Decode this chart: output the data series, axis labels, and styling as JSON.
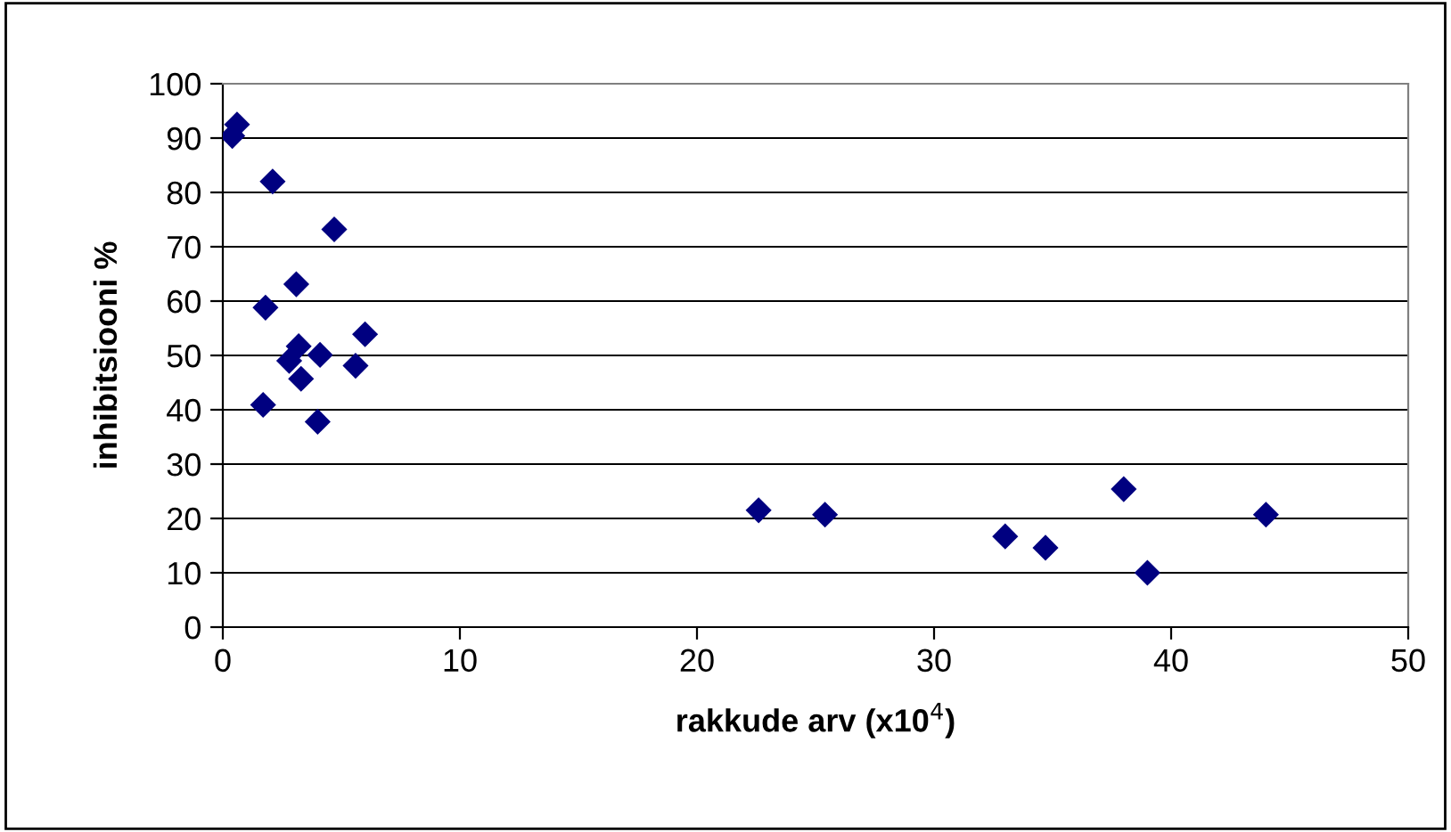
{
  "chart_data": {
    "type": "scatter",
    "xlabel": "rakkude arv (x10$^{4}$)",
    "ylabel": "inhibitsiooni %",
    "x": [
      0.4,
      0.6,
      2.1,
      4.7,
      3.1,
      1.8,
      6.0,
      3.2,
      4.1,
      2.8,
      5.6,
      3.3,
      1.7,
      4.0,
      22.6,
      25.4,
      33.0,
      34.7,
      38.0,
      39.0,
      44.0
    ],
    "values": [
      90.4,
      92.5,
      82,
      73.2,
      63.1,
      58.8,
      53.9,
      51.7,
      50.1,
      49,
      48.1,
      45.7,
      40.9,
      37.8,
      21.5,
      20.7,
      16.7,
      14.6,
      25.4,
      10,
      20.7
    ],
    "color": "#000080",
    "marker": "diamond",
    "grid": "y",
    "xlim": [
      0,
      50
    ],
    "xticks": [
      0,
      10,
      20,
      30,
      40,
      50
    ],
    "ylim": [
      0,
      100
    ],
    "yticks": [
      0,
      10,
      20,
      30,
      40,
      50,
      60,
      70,
      80,
      90,
      100
    ]
  }
}
